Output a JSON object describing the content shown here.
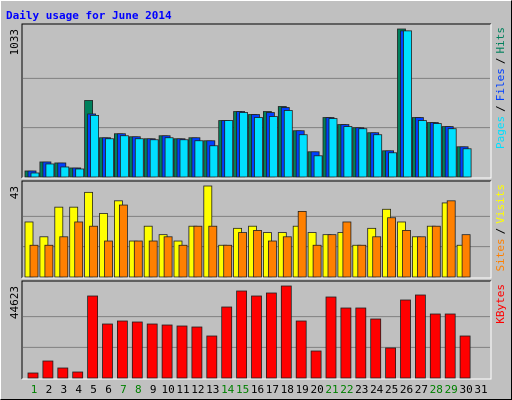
{
  "chart_data": [
    {
      "type": "bar",
      "title": "Daily usage for June 2014",
      "ylim": [
        0,
        1033
      ],
      "yticks": [
        1033
      ],
      "legend_separator": "/",
      "series": [
        {
          "name": "Hits",
          "color": "#00805c",
          "values": [
            42,
            105,
            98,
            63,
            534,
            274,
            302,
            281,
            267,
            288,
            267,
            274,
            253,
            394,
            457,
            436,
            457,
            492,
            323,
            176,
            415,
            366,
            344,
            309,
            183,
            1033,
            415,
            380,
            352,
            211,
            null
          ]
        },
        {
          "name": "Files",
          "color": "#0040ff",
          "values": [
            42,
            105,
            98,
            63,
            440,
            274,
            302,
            281,
            267,
            288,
            267,
            274,
            253,
            394,
            457,
            436,
            450,
            485,
            323,
            176,
            415,
            366,
            344,
            309,
            183,
            1020,
            415,
            380,
            352,
            211,
            null
          ]
        },
        {
          "name": "Pages",
          "color": "#00e0ff",
          "values": [
            28,
            91,
            70,
            56,
            430,
            267,
            288,
            267,
            260,
            274,
            260,
            253,
            218,
            394,
            450,
            415,
            422,
            464,
            295,
            148,
            408,
            352,
            337,
            295,
            169,
            1020,
            394,
            373,
            337,
            197,
            null
          ]
        }
      ]
    },
    {
      "type": "bar",
      "ylim": [
        0,
        43
      ],
      "yticks": [
        43
      ],
      "legend_separator": "/",
      "series": [
        {
          "name": "Visits",
          "color": "#ffff00",
          "values": [
            26,
            19,
            33,
            33,
            40,
            30,
            36,
            17,
            24,
            20,
            17,
            24,
            43,
            15,
            23,
            24,
            21,
            21,
            24,
            21,
            20,
            21,
            15,
            23,
            32,
            26,
            19,
            24,
            35,
            15,
            null
          ]
        },
        {
          "name": "Sites",
          "color": "#ff8000",
          "values": [
            15,
            15,
            19,
            26,
            24,
            17,
            34,
            17,
            17,
            19,
            15,
            24,
            24,
            15,
            21,
            22,
            17,
            19,
            31,
            15,
            20,
            26,
            15,
            19,
            28,
            22,
            19,
            24,
            36,
            20,
            null
          ]
        }
      ]
    },
    {
      "type": "bar",
      "ylim": [
        0,
        44623
      ],
      "yticks": [
        44623
      ],
      "series": [
        {
          "name": "KBytes",
          "color": "#ff0000",
          "values": [
            2425,
            8245,
            4850,
            2910,
            39770,
            26190,
            27645,
            27160,
            26190,
            25705,
            25220,
            24735,
            20370,
            34435,
            42195,
            39770,
            41225,
            44623,
            27645,
            13095,
            39285,
            33950,
            33950,
            28615,
            14550,
            37830,
            40255,
            31040,
            31040,
            20370,
            null
          ]
        }
      ],
      "categories": [
        1,
        2,
        3,
        4,
        5,
        6,
        7,
        8,
        9,
        10,
        11,
        12,
        13,
        14,
        15,
        16,
        17,
        18,
        19,
        20,
        21,
        22,
        23,
        24,
        25,
        26,
        27,
        28,
        29,
        30,
        31
      ],
      "category_colors": [
        "#008000",
        "#000000",
        "#000000",
        "#000000",
        "#000000",
        "#000000",
        "#008000",
        "#008000",
        "#000000",
        "#000000",
        "#000000",
        "#000000",
        "#000000",
        "#008000",
        "#008000",
        "#000000",
        "#000000",
        "#000000",
        "#000000",
        "#000000",
        "#008000",
        "#008000",
        "#000000",
        "#000000",
        "#000000",
        "#000000",
        "#000000",
        "#008000",
        "#008000",
        "#000000",
        "#000000"
      ]
    }
  ]
}
